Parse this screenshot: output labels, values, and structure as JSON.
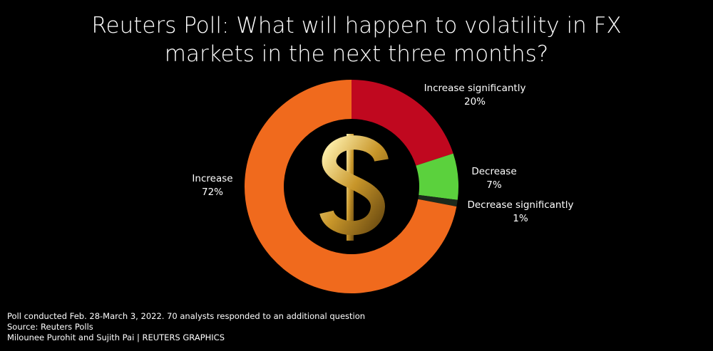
{
  "chart_data": {
    "type": "donut",
    "title": "Reuters Poll: What will happen to volatility in FX markets in the next three months?",
    "categories": [
      "Increase significantly",
      "Decrease",
      "Decrease significantly",
      "Increase"
    ],
    "values": [
      20,
      7,
      1,
      72
    ],
    "value_labels": [
      "20%",
      "7%",
      "1%",
      "72%"
    ],
    "colors": [
      "#c0081f",
      "#5bd13d",
      "#1c2a1c",
      "#f06a1d"
    ],
    "notes": [
      "Poll conducted Feb. 28-March 3, 2022.  70 analysts responded to an additional question",
      "Source: Reuters Polls",
      "Milounee Purohit and Sujith Pai  | REUTERS GRAPHICS"
    ]
  }
}
